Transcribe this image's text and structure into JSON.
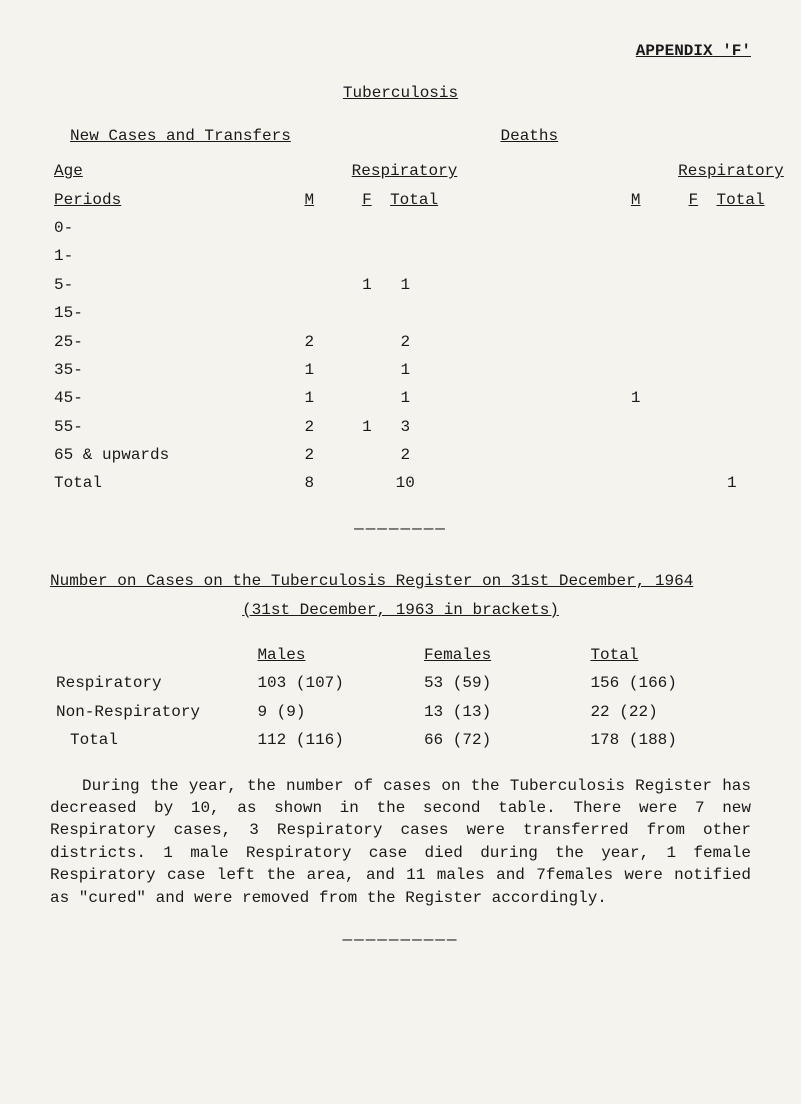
{
  "appendix": {
    "label_main": "APPENDIX",
    "label_sub": " 'F'"
  },
  "title": "Tuberculosis",
  "sections": {
    "left": "New Cases and Transfers",
    "right": "Deaths"
  },
  "headers": {
    "age": "Age",
    "periods": "Periods",
    "respiratory": "Respiratory",
    "m": "M",
    "f": "F",
    "total": "Total"
  },
  "rows": [
    {
      "age": "0-",
      "m1": "",
      "f1": "",
      "t1": "",
      "m2": "",
      "f2": "",
      "t2": ""
    },
    {
      "age": "1-",
      "m1": "",
      "f1": "",
      "t1": "",
      "m2": "",
      "f2": "",
      "t2": ""
    },
    {
      "age": "5-",
      "m1": "",
      "f1": "1",
      "t1": "1",
      "m2": "",
      "f2": "",
      "t2": ""
    },
    {
      "age": "15-",
      "m1": "",
      "f1": "",
      "t1": "",
      "m2": "",
      "f2": "",
      "t2": ""
    },
    {
      "age": "25-",
      "m1": "2",
      "f1": "",
      "t1": "2",
      "m2": "",
      "f2": "",
      "t2": ""
    },
    {
      "age": "35-",
      "m1": "1",
      "f1": "",
      "t1": "1",
      "m2": "",
      "f2": "",
      "t2": ""
    },
    {
      "age": "45-",
      "m1": "1",
      "f1": "",
      "t1": "1",
      "m2": "1",
      "f2": "",
      "t2": ""
    },
    {
      "age": "55-",
      "m1": "2",
      "f1": "1",
      "t1": "3",
      "m2": "",
      "f2": "",
      "t2": ""
    },
    {
      "age": "65 & upwards",
      "m1": "2",
      "f1": "",
      "t1": "2",
      "m2": "",
      "f2": "",
      "t2": ""
    },
    {
      "age": "Total",
      "m1": "8",
      "f1": "",
      "t1": "10",
      "m2": "",
      "f2": "",
      "t2": "1"
    }
  ],
  "separator": "————————",
  "register": {
    "line1": "Number on Cases on the Tuberculosis Register on 31st December, 1964",
    "line2": "(31st December, 1963 in brackets)",
    "headers": {
      "males": "Males",
      "females": "Females",
      "total": "Total"
    },
    "rows": [
      {
        "label": "Respiratory",
        "m": "103 (107)",
        "f": "53 (59)",
        "t": "156 (166)"
      },
      {
        "label": "Non-Respiratory",
        "m": "9 (9)",
        "f": "13 (13)",
        "t": "22 (22)"
      },
      {
        "label": "Total",
        "m": "112 (116)",
        "f": "66 (72)",
        "t": "178 (188)"
      }
    ]
  },
  "paragraph": "During the year, the number of cases on the Tuberculosis Register has decreased by 10, as shown in the second table. There were 7 new Respiratory cases, 3 Respiratory cases were transferred from other districts. 1 male Respiratory case died during the year, 1 female Respiratory case left the area, and 11 males and 7females were notified as \"cured\" and were removed from the Register accordingly.",
  "separator2": "——————————"
}
